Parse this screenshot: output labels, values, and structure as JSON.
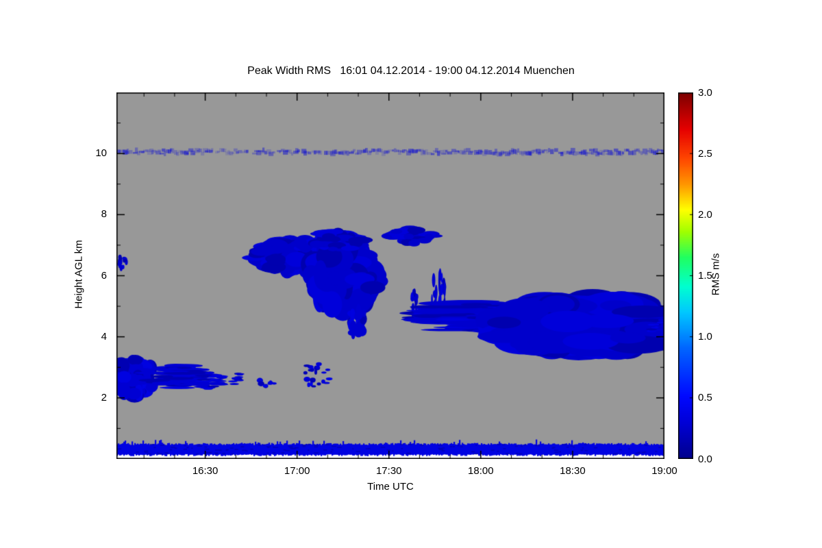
{
  "chart_data": {
    "type": "heatmap",
    "title": "Peak Width RMS   16:01 04.12.2014 - 19:00 04.12.2014 Muenchen",
    "xlabel": "Time UTC",
    "ylabel": "Height AGL km",
    "x_range_hours": [
      16.0167,
      19.0
    ],
    "x_ticks": [
      {
        "hour": 16.5,
        "label": "16:30"
      },
      {
        "hour": 17.0,
        "label": "17:00"
      },
      {
        "hour": 17.5,
        "label": "17:30"
      },
      {
        "hour": 18.0,
        "label": "18:00"
      },
      {
        "hour": 18.5,
        "label": "18:30"
      },
      {
        "hour": 19.0,
        "label": "19:00"
      }
    ],
    "x_minor_hours": [
      16.1667,
      16.3333,
      16.6667,
      16.8333,
      17.1667,
      17.3333,
      17.6667,
      17.8333,
      18.1667,
      18.3333,
      18.6667,
      18.8333
    ],
    "y_range_km": [
      0,
      12
    ],
    "y_ticks": [
      {
        "km": 2,
        "label": "2"
      },
      {
        "km": 4,
        "label": "4"
      },
      {
        "km": 6,
        "label": "6"
      },
      {
        "km": 8,
        "label": "8"
      },
      {
        "km": 10,
        "label": "10"
      }
    ],
    "y_minor_km": [
      1,
      3,
      5,
      7,
      9,
      11
    ],
    "plot_bg_color": "#989898",
    "below_min_color": "#fbfbfd",
    "frame_color": "#000000",
    "colorbar": {
      "label": "RMS m/s",
      "min": 0,
      "max": 3,
      "tick_values": [
        0.0,
        0.5,
        1.0,
        1.5,
        2.0,
        2.5,
        3.0
      ],
      "tick_labels": [
        "0.0",
        "0.5",
        "1.0",
        "1.5",
        "2.0",
        "2.5",
        "3.0"
      ],
      "stops": [
        {
          "pos": 0.0,
          "color": "#00008c"
        },
        {
          "pos": 0.1,
          "color": "#0000d8"
        },
        {
          "pos": 0.17,
          "color": "#0008ff"
        },
        {
          "pos": 0.3,
          "color": "#0064ff"
        },
        {
          "pos": 0.4,
          "color": "#00c8ff"
        },
        {
          "pos": 0.47,
          "color": "#00ffd0"
        },
        {
          "pos": 0.55,
          "color": "#20ff60"
        },
        {
          "pos": 0.62,
          "color": "#a0ff00"
        },
        {
          "pos": 0.68,
          "color": "#ffff00"
        },
        {
          "pos": 0.75,
          "color": "#ff9600"
        },
        {
          "pos": 0.82,
          "color": "#ff4600"
        },
        {
          "pos": 0.9,
          "color": "#e60000"
        },
        {
          "pos": 1.0,
          "color": "#7d0000"
        }
      ]
    },
    "bands": [
      {
        "type": "stripe",
        "desc": "near-surface echo band",
        "h_km": 0.33,
        "half_thickness_km": 0.16,
        "rms_value": 0.35
      },
      {
        "type": "mottled",
        "desc": "thin faint layer near 10 km",
        "h_km": 10.05,
        "half_thickness_km": 0.12,
        "rms_value": 0.3
      }
    ],
    "cloud_patches": [
      {
        "t_hour": 16.11,
        "h_km": 2.65,
        "rt_hour": 0.11,
        "rh_km": 0.6,
        "n": 90,
        "rms_value": 0.28,
        "style": "blob"
      },
      {
        "t_hour": 16.36,
        "h_km": 2.7,
        "rt_hour": 0.15,
        "rh_km": 0.38,
        "n": 70,
        "rms_value": 0.28,
        "style": "streaks"
      },
      {
        "t_hour": 16.53,
        "h_km": 2.55,
        "rt_hour": 0.07,
        "rh_km": 0.3,
        "n": 28,
        "rms_value": 0.28,
        "style": "streaks"
      },
      {
        "t_hour": 16.66,
        "h_km": 2.65,
        "rt_hour": 0.04,
        "rh_km": 0.22,
        "n": 12,
        "rms_value": 0.28,
        "style": "streaks"
      },
      {
        "t_hour": 16.05,
        "h_km": 6.45,
        "rt_hour": 0.03,
        "rh_km": 0.22,
        "n": 14,
        "rms_value": 0.25,
        "style": "blob"
      },
      {
        "t_hour": 16.95,
        "h_km": 6.65,
        "rt_hour": 0.17,
        "rh_km": 0.52,
        "n": 120,
        "rms_value": 0.25,
        "style": "blob"
      },
      {
        "t_hour": 17.25,
        "h_km": 6.0,
        "rt_hour": 0.18,
        "rh_km": 1.05,
        "n": 170,
        "rms_value": 0.25,
        "style": "blob"
      },
      {
        "t_hour": 17.22,
        "h_km": 7.15,
        "rt_hour": 0.14,
        "rh_km": 0.3,
        "n": 50,
        "rms_value": 0.25,
        "style": "blob"
      },
      {
        "t_hour": 17.33,
        "h_km": 4.5,
        "rt_hour": 0.05,
        "rh_km": 0.5,
        "n": 30,
        "rms_value": 0.27,
        "style": "blob"
      },
      {
        "t_hour": 17.62,
        "h_km": 7.3,
        "rt_hour": 0.12,
        "rh_km": 0.24,
        "n": 48,
        "rms_value": 0.25,
        "style": "blob"
      },
      {
        "t_hour": 17.64,
        "h_km": 5.1,
        "rt_hour": 0.015,
        "rh_km": 0.45,
        "n": 14,
        "rms_value": 0.27,
        "style": "vstreaks"
      },
      {
        "t_hour": 17.77,
        "h_km": 5.3,
        "rt_hour": 0.045,
        "rh_km": 0.8,
        "n": 26,
        "rms_value": 0.27,
        "style": "vstreaks"
      },
      {
        "t_hour": 17.95,
        "h_km": 4.65,
        "rt_hour": 0.26,
        "rh_km": 0.52,
        "n": 120,
        "rms_value": 0.26,
        "style": "streaks"
      },
      {
        "t_hour": 18.56,
        "h_km": 4.35,
        "rt_hour": 0.44,
        "rh_km": 0.85,
        "n": 280,
        "rms_value": 0.25,
        "style": "blob"
      },
      {
        "t_hour": 18.97,
        "h_km": 4.3,
        "rt_hour": 0.05,
        "rh_km": 0.28,
        "n": 22,
        "rms_value": 0.28,
        "style": "streaks"
      },
      {
        "t_hour": 17.12,
        "h_km": 2.75,
        "rt_hour": 0.11,
        "rh_km": 0.4,
        "n": 20,
        "rms_value": 0.3,
        "style": "dots"
      },
      {
        "t_hour": 16.83,
        "h_km": 2.5,
        "rt_hour": 0.05,
        "rh_km": 0.15,
        "n": 8,
        "rms_value": 0.3,
        "style": "dots"
      }
    ]
  }
}
